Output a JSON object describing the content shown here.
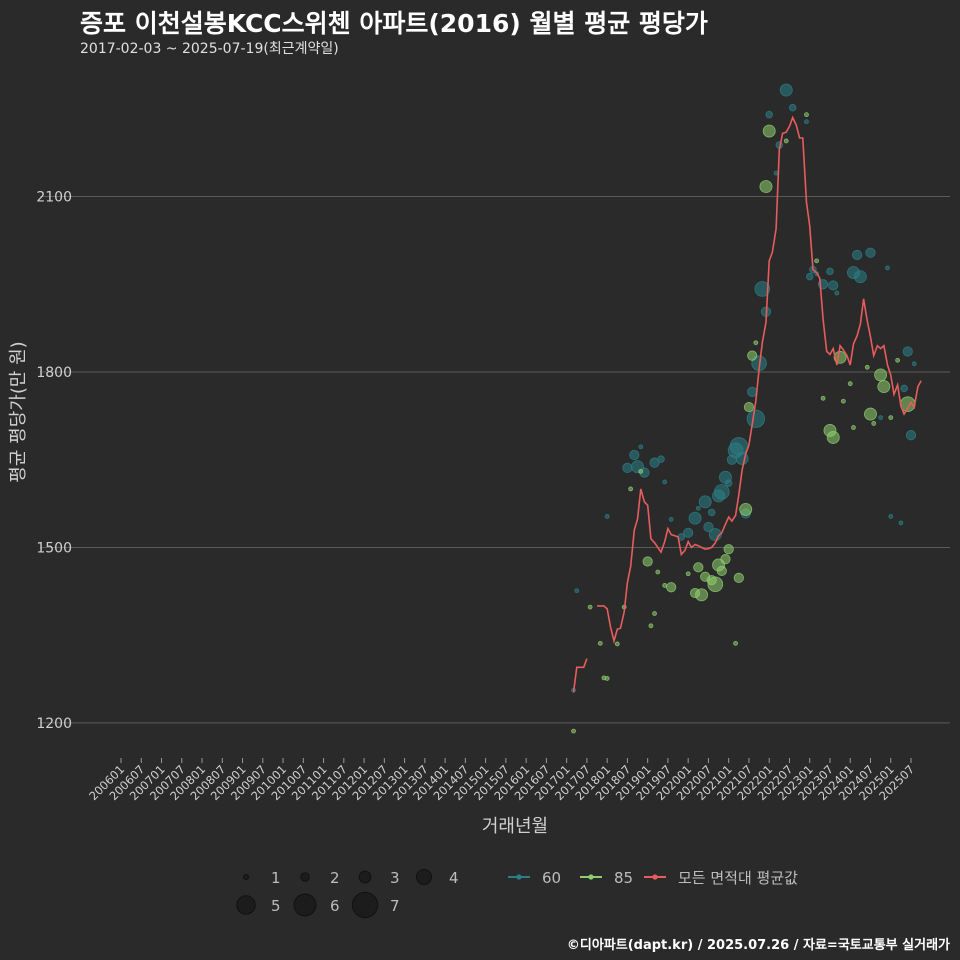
{
  "header": {
    "title": "증포 이천설봉KCC스위첸 아파트(2016) 월별 평균 평당가",
    "subtitle": "2017-02-03 ~ 2025-07-19(최근계약일)"
  },
  "footer": {
    "credit": "©디아파트(dapt.kr) / 2025.07.26 / 자료=국토교통부 실거래가"
  },
  "colors": {
    "background": "#2a2a2b",
    "grid": "#5a5a5a",
    "s60": "#2a7f86",
    "s85": "#8fcf70",
    "avg": "#e85c5c"
  },
  "chart_data": {
    "type": "scatter",
    "title": "증포 이천설봉KCC스위첸 아파트(2016) 월별 평균 평당가",
    "xlabel": "거래년월",
    "ylabel": "평균 평당가(만 원)",
    "ylim": [
      1140,
      2330
    ],
    "yticks": [
      1200,
      1500,
      1800,
      2100
    ],
    "x_tick_labels": [
      "200601",
      "200607",
      "200701",
      "200707",
      "200801",
      "200807",
      "200901",
      "200907",
      "201001",
      "201007",
      "201101",
      "201107",
      "201201",
      "201207",
      "201301",
      "201307",
      "201401",
      "201407",
      "201501",
      "201507",
      "201601",
      "201607",
      "201701",
      "201707",
      "201801",
      "201807",
      "201901",
      "201907",
      "202001",
      "202007",
      "202101",
      "202107",
      "202201",
      "202207",
      "202301",
      "202307",
      "202401",
      "202407",
      "202501",
      "202507"
    ],
    "size_legend": [
      1,
      2,
      3,
      4,
      5,
      6,
      7
    ],
    "series_legend": [
      "60",
      "85",
      "모든 면적대 평균값"
    ],
    "series": [
      {
        "name": "60",
        "points": [
          [
            2017.17,
            1256,
            1
          ],
          [
            2017.25,
            1426,
            1
          ],
          [
            2018.0,
            1553,
            1
          ],
          [
            2018.5,
            1636,
            3
          ],
          [
            2018.67,
            1658,
            3
          ],
          [
            2018.75,
            1638,
            4
          ],
          [
            2018.83,
            1672,
            1
          ],
          [
            2018.92,
            1628,
            3
          ],
          [
            2019.17,
            1645,
            3
          ],
          [
            2019.33,
            1651,
            2
          ],
          [
            2019.42,
            1612,
            1
          ],
          [
            2019.58,
            1548,
            1
          ],
          [
            2019.83,
            1518,
            2
          ],
          [
            2020.0,
            1525,
            3
          ],
          [
            2020.17,
            1550,
            4
          ],
          [
            2020.25,
            1567,
            1
          ],
          [
            2020.42,
            1578,
            4
          ],
          [
            2020.5,
            1535,
            3
          ],
          [
            2020.58,
            1560,
            2
          ],
          [
            2020.67,
            1522,
            4
          ],
          [
            2020.75,
            1588,
            4
          ],
          [
            2020.83,
            1595,
            5
          ],
          [
            2020.92,
            1620,
            4
          ],
          [
            2021.0,
            1610,
            2
          ],
          [
            2021.08,
            1650,
            3
          ],
          [
            2021.17,
            1666,
            5
          ],
          [
            2021.25,
            1673,
            6
          ],
          [
            2021.33,
            1652,
            4
          ],
          [
            2021.42,
            1558,
            3
          ],
          [
            2021.58,
            1766,
            3
          ],
          [
            2021.67,
            1720,
            6
          ],
          [
            2021.75,
            1815,
            5
          ],
          [
            2021.83,
            1942,
            5
          ],
          [
            2021.92,
            1903,
            3
          ],
          [
            2022.0,
            2240,
            2
          ],
          [
            2022.17,
            2140,
            1
          ],
          [
            2022.25,
            2188,
            2
          ],
          [
            2022.42,
            2282,
            4
          ],
          [
            2022.58,
            2252,
            2
          ],
          [
            2022.92,
            2228,
            1
          ],
          [
            2023.0,
            1963,
            2
          ],
          [
            2023.08,
            1975,
            2
          ],
          [
            2023.17,
            1968,
            1
          ],
          [
            2023.33,
            1950,
            3
          ],
          [
            2023.5,
            1972,
            2
          ],
          [
            2023.58,
            1948,
            3
          ],
          [
            2023.67,
            1935,
            1
          ],
          [
            2024.08,
            1970,
            4
          ],
          [
            2024.17,
            2000,
            3
          ],
          [
            2024.25,
            1963,
            4
          ],
          [
            2024.5,
            2004,
            3
          ],
          [
            2024.75,
            1722,
            1
          ],
          [
            2024.92,
            1978,
            1
          ],
          [
            2025.0,
            1553,
            1
          ],
          [
            2025.25,
            1542,
            1
          ],
          [
            2025.33,
            1772,
            2
          ],
          [
            2025.42,
            1835,
            3
          ],
          [
            2025.5,
            1692,
            3
          ],
          [
            2025.58,
            1814,
            1
          ]
        ]
      },
      {
        "name": "85",
        "points": [
          [
            2017.17,
            1186,
            1
          ],
          [
            2017.58,
            1398,
            1
          ],
          [
            2017.83,
            1336,
            1
          ],
          [
            2017.92,
            1277,
            1
          ],
          [
            2018.0,
            1276,
            1
          ],
          [
            2018.25,
            1335,
            1
          ],
          [
            2018.42,
            1398,
            1
          ],
          [
            2018.58,
            1600,
            1
          ],
          [
            2018.83,
            1630,
            1
          ],
          [
            2019.0,
            1476,
            3
          ],
          [
            2019.08,
            1366,
            1
          ],
          [
            2019.17,
            1387,
            1
          ],
          [
            2019.25,
            1458,
            1
          ],
          [
            2019.42,
            1435,
            1
          ],
          [
            2019.58,
            1432,
            3
          ],
          [
            2020.0,
            1455,
            1
          ],
          [
            2020.17,
            1422,
            3
          ],
          [
            2020.25,
            1466,
            3
          ],
          [
            2020.33,
            1419,
            4
          ],
          [
            2020.42,
            1450,
            3
          ],
          [
            2020.58,
            1444,
            3
          ],
          [
            2020.67,
            1437,
            5
          ],
          [
            2020.75,
            1470,
            4
          ],
          [
            2020.83,
            1460,
            3
          ],
          [
            2020.92,
            1480,
            3
          ],
          [
            2021.0,
            1497,
            3
          ],
          [
            2021.17,
            1336,
            1
          ],
          [
            2021.25,
            1448,
            3
          ],
          [
            2021.42,
            1565,
            4
          ],
          [
            2021.5,
            1740,
            3
          ],
          [
            2021.58,
            1828,
            3
          ],
          [
            2021.67,
            1850,
            1
          ],
          [
            2021.92,
            2117,
            4
          ],
          [
            2022.0,
            2212,
            4
          ],
          [
            2022.42,
            2195,
            1
          ],
          [
            2022.92,
            2240,
            1
          ],
          [
            2023.17,
            1990,
            1
          ],
          [
            2023.33,
            1755,
            1
          ],
          [
            2023.5,
            1700,
            4
          ],
          [
            2023.58,
            1688,
            4
          ],
          [
            2023.75,
            1825,
            4
          ],
          [
            2023.83,
            1750,
            1
          ],
          [
            2024.0,
            1780,
            1
          ],
          [
            2024.08,
            1705,
            1
          ],
          [
            2024.42,
            1808,
            1
          ],
          [
            2024.5,
            1728,
            4
          ],
          [
            2024.58,
            1712,
            1
          ],
          [
            2024.75,
            1795,
            4
          ],
          [
            2024.83,
            1775,
            4
          ],
          [
            2025.0,
            1722,
            1
          ],
          [
            2025.17,
            1820,
            1
          ],
          [
            2025.42,
            1745,
            5
          ]
        ]
      },
      {
        "name": "모든 면적대 평균값",
        "segments": [
          [
            [
              2017.17,
              1252
            ],
            [
              2017.25,
              1295
            ],
            [
              2017.42,
              1295
            ],
            [
              2017.5,
              1310
            ]
          ],
          [
            [
              2017.75,
              1400
            ],
            [
              2017.92,
              1400
            ],
            [
              2018.0,
              1395
            ],
            [
              2018.08,
              1365
            ],
            [
              2018.17,
              1340
            ],
            [
              2018.25,
              1360
            ],
            [
              2018.33,
              1362
            ],
            [
              2018.42,
              1390
            ],
            [
              2018.5,
              1440
            ],
            [
              2018.58,
              1468
            ],
            [
              2018.67,
              1530
            ],
            [
              2018.75,
              1548
            ],
            [
              2018.83,
              1600
            ],
            [
              2018.92,
              1578
            ],
            [
              2019.0,
              1572
            ],
            [
              2019.08,
              1515
            ],
            [
              2019.17,
              1508
            ],
            [
              2019.25,
              1500
            ],
            [
              2019.33,
              1492
            ],
            [
              2019.42,
              1510
            ],
            [
              2019.5,
              1532
            ],
            [
              2019.58,
              1522
            ],
            [
              2019.67,
              1520
            ],
            [
              2019.75,
              1518
            ],
            [
              2019.83,
              1488
            ],
            [
              2019.92,
              1495
            ],
            [
              2020.0,
              1510
            ],
            [
              2020.08,
              1500
            ],
            [
              2020.17,
              1505
            ],
            [
              2020.25,
              1503
            ],
            [
              2020.33,
              1500
            ],
            [
              2020.42,
              1497
            ],
            [
              2020.5,
              1498
            ],
            [
              2020.58,
              1500
            ],
            [
              2020.67,
              1508
            ],
            [
              2020.75,
              1520
            ],
            [
              2020.83,
              1525
            ],
            [
              2020.92,
              1540
            ],
            [
              2021.0,
              1552
            ],
            [
              2021.08,
              1545
            ],
            [
              2021.17,
              1555
            ],
            [
              2021.25,
              1590
            ],
            [
              2021.33,
              1632
            ],
            [
              2021.42,
              1660
            ],
            [
              2021.5,
              1675
            ],
            [
              2021.58,
              1710
            ],
            [
              2021.67,
              1750
            ],
            [
              2021.75,
              1805
            ],
            [
              2021.83,
              1850
            ],
            [
              2021.92,
              1885
            ],
            [
              2022.0,
              1990
            ],
            [
              2022.08,
              2005
            ],
            [
              2022.17,
              2045
            ],
            [
              2022.25,
              2180
            ],
            [
              2022.33,
              2208
            ],
            [
              2022.42,
              2210
            ],
            [
              2022.5,
              2220
            ],
            [
              2022.58,
              2235
            ],
            [
              2022.67,
              2222
            ],
            [
              2022.75,
              2200
            ],
            [
              2022.83,
              2200
            ],
            [
              2022.92,
              2090
            ],
            [
              2023.0,
              2050
            ],
            [
              2023.08,
              1975
            ],
            [
              2023.17,
              1970
            ],
            [
              2023.25,
              1960
            ],
            [
              2023.33,
              1890
            ],
            [
              2023.42,
              1835
            ],
            [
              2023.5,
              1830
            ],
            [
              2023.58,
              1840
            ],
            [
              2023.67,
              1812
            ],
            [
              2023.75,
              1845
            ],
            [
              2023.83,
              1838
            ],
            [
              2023.92,
              1828
            ],
            [
              2024.0,
              1812
            ],
            [
              2024.08,
              1848
            ],
            [
              2024.17,
              1862
            ],
            [
              2024.25,
              1882
            ],
            [
              2024.33,
              1925
            ],
            [
              2024.42,
              1888
            ],
            [
              2024.5,
              1860
            ],
            [
              2024.58,
              1828
            ],
            [
              2024.67,
              1845
            ],
            [
              2024.75,
              1840
            ],
            [
              2024.83,
              1845
            ],
            [
              2024.92,
              1812
            ],
            [
              2025.0,
              1795
            ],
            [
              2025.08,
              1762
            ],
            [
              2025.17,
              1778
            ],
            [
              2025.25,
              1742
            ],
            [
              2025.33,
              1728
            ],
            [
              2025.42,
              1738
            ],
            [
              2025.5,
              1748
            ],
            [
              2025.58,
              1740
            ],
            [
              2025.67,
              1775
            ],
            [
              2025.75,
              1785
            ]
          ]
        ]
      }
    ]
  }
}
